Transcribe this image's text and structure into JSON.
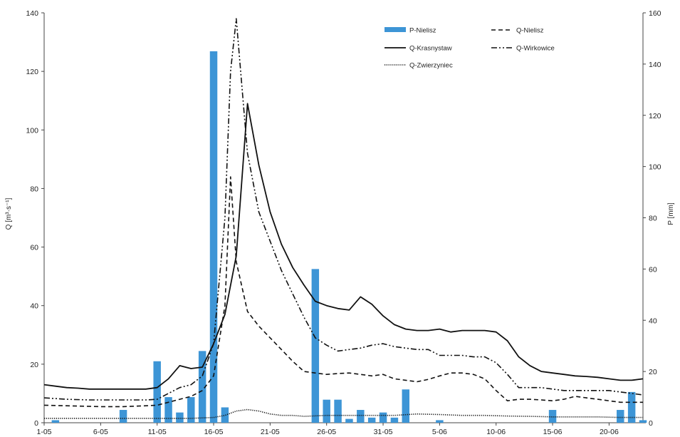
{
  "chart_data": {
    "type": "bar+line",
    "title": "",
    "xlabel": "",
    "ylabel": "Q [m³·s⁻¹]",
    "ylabel_right": "P [mm]",
    "ylim": [
      0,
      140
    ],
    "ylim_right": [
      0,
      160
    ],
    "x_range": [
      1,
      54
    ],
    "x_ticks": [
      {
        "x": 1,
        "label": "1-05"
      },
      {
        "x": 6,
        "label": "6-05"
      },
      {
        "x": 11,
        "label": "11-05"
      },
      {
        "x": 16,
        "label": "16-05"
      },
      {
        "x": 21,
        "label": "21-05"
      },
      {
        "x": 26,
        "label": "26-05"
      },
      {
        "x": 31,
        "label": "31-05"
      },
      {
        "x": 36,
        "label": "5-06"
      },
      {
        "x": 41,
        "label": "10-06"
      },
      {
        "x": 46,
        "label": "15-06"
      },
      {
        "x": 51,
        "label": "20-06"
      }
    ],
    "y_ticks_left": [
      0,
      20,
      40,
      60,
      80,
      100,
      120,
      140
    ],
    "y_ticks_right": [
      0,
      20,
      40,
      60,
      80,
      100,
      120,
      140,
      160
    ],
    "grid": false,
    "legend_position": "top-right",
    "precipitation": {
      "name": "P-Nielisz",
      "color": "#3d95d6",
      "axis": "right",
      "x": [
        2,
        8,
        11,
        12,
        13,
        14,
        15,
        16,
        17,
        25,
        26,
        27,
        28,
        29,
        30,
        31,
        32,
        33,
        36,
        46,
        52,
        53,
        54
      ],
      "values": [
        1,
        5,
        24,
        10,
        4,
        10,
        28,
        145,
        6,
        60,
        9,
        9,
        1.5,
        5,
        2,
        4,
        2,
        13,
        1,
        5,
        5,
        12,
        1
      ]
    },
    "series": [
      {
        "name": "Q-Nielisz",
        "style": "dashed",
        "axis": "left",
        "x": [
          1,
          3,
          6,
          8,
          10,
          11,
          12,
          13,
          14,
          15,
          16,
          17,
          17.5,
          18,
          19,
          20,
          21,
          22,
          23,
          24,
          25,
          26,
          27,
          28,
          29,
          30,
          31,
          32,
          33,
          34,
          35,
          36,
          37,
          38,
          39,
          40,
          41,
          42,
          43,
          44,
          45,
          46,
          47,
          48,
          49,
          50,
          51,
          52,
          53,
          54
        ],
        "values": [
          6,
          5.8,
          5.5,
          5.5,
          5.8,
          6,
          7,
          8,
          9,
          11,
          16,
          40,
          84,
          55,
          38,
          33,
          29,
          25,
          21,
          17.5,
          17,
          16.5,
          16.8,
          17,
          16.5,
          16,
          16.5,
          15,
          14.5,
          14,
          14.8,
          16,
          17,
          17,
          16.5,
          15,
          11,
          7.5,
          8,
          8,
          7.8,
          7.5,
          8,
          9,
          8.5,
          8,
          7.5,
          7,
          7,
          7
        ]
      },
      {
        "name": "Q-Krasnystaw",
        "style": "solid",
        "axis": "left",
        "x": [
          1,
          2,
          3,
          4,
          5,
          6,
          7,
          8,
          9,
          10,
          11,
          12,
          13,
          14,
          15,
          16,
          17,
          18,
          19,
          20,
          21,
          22,
          23,
          24,
          25,
          26,
          27,
          28,
          29,
          30,
          31,
          32,
          33,
          34,
          35,
          36,
          37,
          38,
          39,
          40,
          41,
          42,
          43,
          44,
          45,
          46,
          47,
          48,
          49,
          50,
          51,
          52,
          53,
          54
        ],
        "values": [
          13,
          12.5,
          12,
          11.8,
          11.5,
          11.5,
          11.5,
          11.5,
          11.5,
          11.5,
          12,
          15,
          19.5,
          18.5,
          19,
          27,
          37,
          57,
          109,
          88,
          72,
          61,
          53,
          47,
          41.5,
          40,
          39,
          38.5,
          43,
          40.5,
          36.5,
          33.5,
          32,
          31.5,
          31.5,
          32,
          31,
          31.5,
          31.5,
          31.5,
          31,
          28,
          22.5,
          19.5,
          17.5,
          17,
          16.5,
          16,
          15.8,
          15.5,
          15,
          14.5,
          14.5,
          15
        ]
      },
      {
        "name": "Q-Wirkowice",
        "style": "dash-dot-dot",
        "axis": "left",
        "x": [
          1,
          3,
          5,
          8,
          10,
          11,
          12,
          13,
          14,
          15,
          16,
          17,
          17.5,
          18,
          19,
          20,
          21,
          22,
          23,
          24,
          25,
          26,
          27,
          28,
          29,
          30,
          31,
          32,
          33,
          34,
          35,
          36,
          37,
          38,
          39,
          40,
          41,
          42,
          43,
          44,
          45,
          46,
          47,
          48,
          49,
          50,
          51,
          52,
          53,
          54
        ],
        "values": [
          8.5,
          8,
          7.8,
          7.8,
          7.8,
          8,
          10,
          12,
          13,
          16,
          27,
          70,
          120,
          138,
          92,
          72,
          62,
          52,
          44,
          36,
          29,
          26.5,
          24.5,
          25,
          25.5,
          26.5,
          27,
          26,
          25.5,
          25,
          25,
          23,
          23,
          23,
          22.5,
          22.5,
          20.5,
          16.5,
          12,
          12,
          12,
          11.5,
          11,
          11,
          11,
          11,
          11,
          10.5,
          10,
          9.5
        ]
      },
      {
        "name": "Q-Zwierzyniec",
        "style": "dotted",
        "axis": "left",
        "x": [
          1,
          5,
          10,
          14,
          16,
          17,
          18,
          19,
          20,
          21,
          22,
          23,
          24,
          26,
          28,
          30,
          32,
          34,
          36,
          38,
          40,
          42,
          44,
          46,
          48,
          50,
          52,
          54
        ],
        "values": [
          1.5,
          1.5,
          1.5,
          1.5,
          1.8,
          2.5,
          4,
          4.5,
          4,
          3,
          2.5,
          2.5,
          2.2,
          2.5,
          2.5,
          2.5,
          2.5,
          3,
          2.8,
          2.5,
          2.5,
          2.3,
          2.2,
          2,
          2,
          2,
          1.8,
          1.8
        ]
      }
    ]
  },
  "legend": [
    {
      "name": "P-Nielisz",
      "kind": "bar"
    },
    {
      "name": "Q-Nielisz",
      "kind": "dashed"
    },
    {
      "name": "Q-Krasnystaw",
      "kind": "solid"
    },
    {
      "name": "Q-Wirkowice",
      "kind": "dash-dot-dot"
    },
    {
      "name": "Q-Zwierzyniec",
      "kind": "dotted"
    }
  ]
}
